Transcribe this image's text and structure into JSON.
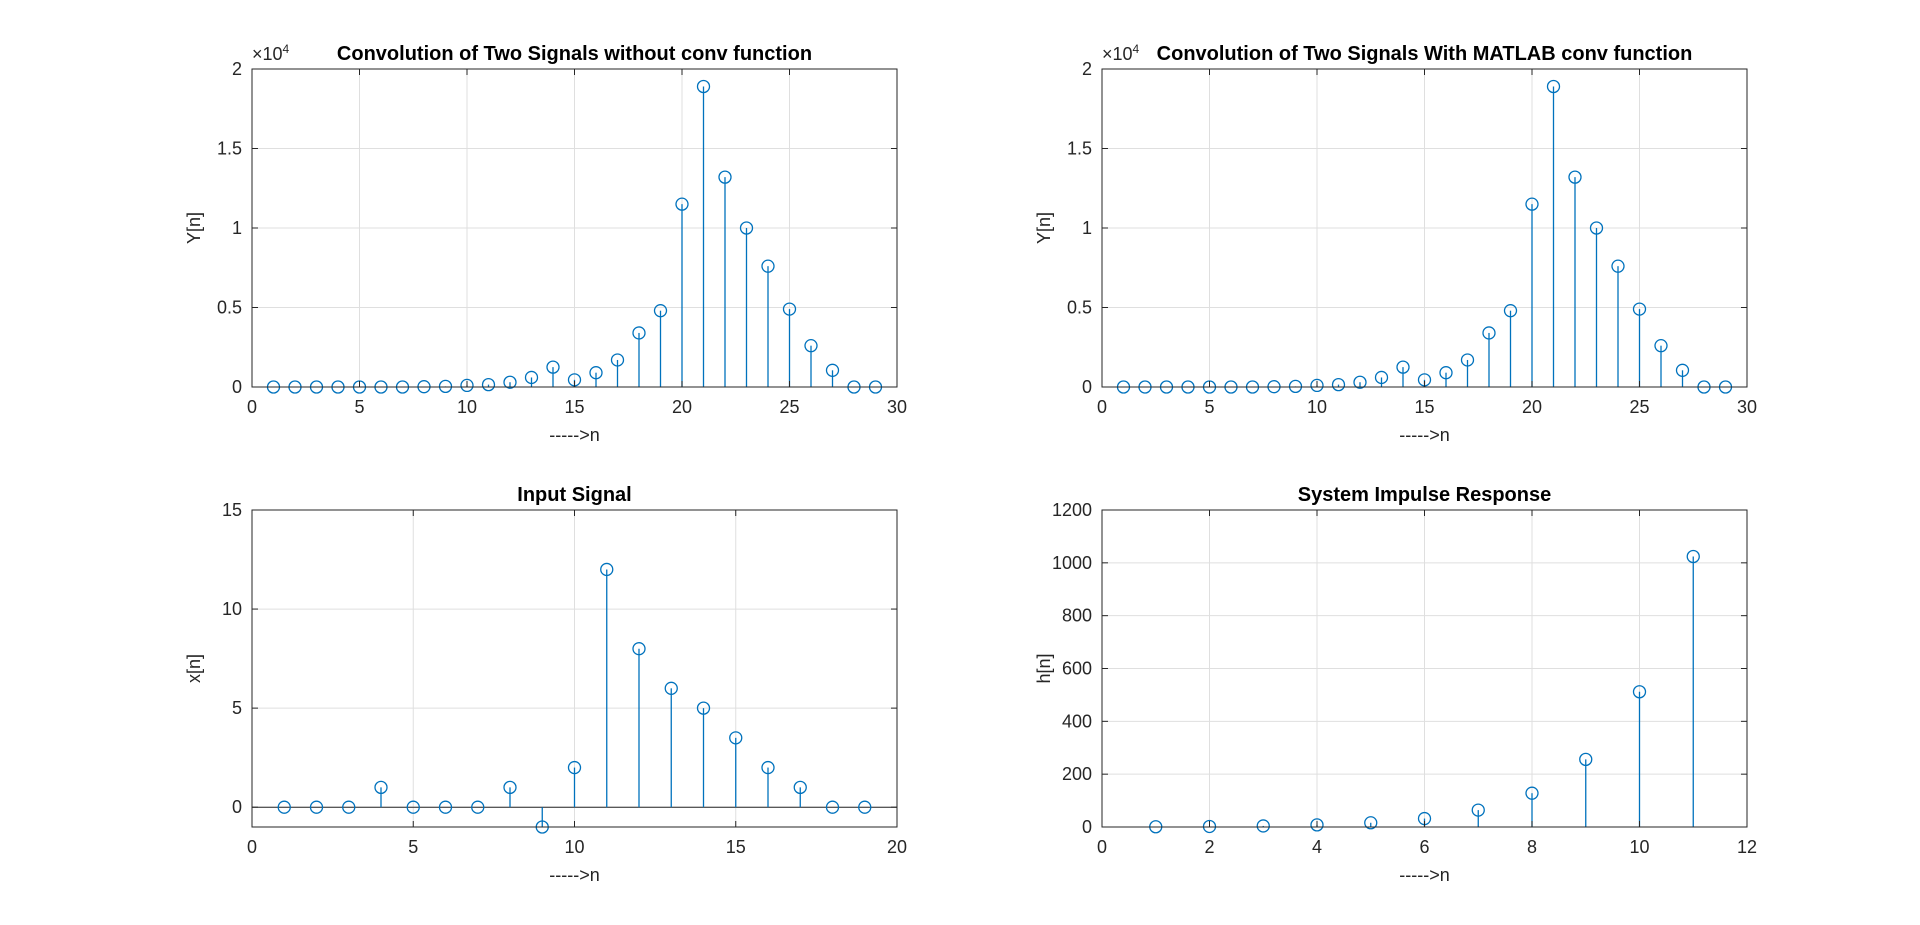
{
  "colors": {
    "stem": "#0072BD",
    "axis": "#262626",
    "grid": "#DFDFDF",
    "background": "#FFFFFF"
  },
  "chart_data": [
    {
      "type": "stem",
      "title": "Convolution of Two Signals without conv function",
      "xlabel": "----->n",
      "ylabel": "Y[n]",
      "xlim": [
        0,
        30
      ],
      "ylim": [
        0,
        20000
      ],
      "xticks": [
        0,
        5,
        10,
        15,
        20,
        25,
        30
      ],
      "yticks": [
        0,
        5000,
        10000,
        15000,
        20000
      ],
      "ytick_labels": [
        "0",
        "0.5",
        "1",
        "1.5",
        "2"
      ],
      "exponent_label": "×10",
      "exponent_power": "4",
      "grid": true,
      "x": [
        1,
        2,
        3,
        4,
        5,
        6,
        7,
        8,
        9,
        10,
        11,
        12,
        13,
        14,
        15,
        16,
        17,
        18,
        19,
        20,
        21,
        22,
        23,
        24,
        25,
        26,
        27,
        28,
        29
      ],
      "y": [
        0,
        0,
        0,
        0,
        0,
        0,
        0,
        20,
        40,
        100,
        150,
        300,
        600,
        1250,
        450,
        900,
        1700,
        3400,
        4800,
        11500,
        18900,
        13200,
        10000,
        7600,
        4900,
        2600,
        1050,
        0,
        0
      ]
    },
    {
      "type": "stem",
      "title": "Convolution of Two Signals With MATLAB conv function",
      "xlabel": "----->n",
      "ylabel": "Y[n]",
      "xlim": [
        0,
        30
      ],
      "ylim": [
        0,
        20000
      ],
      "xticks": [
        0,
        5,
        10,
        15,
        20,
        25,
        30
      ],
      "yticks": [
        0,
        5000,
        10000,
        15000,
        20000
      ],
      "ytick_labels": [
        "0",
        "0.5",
        "1",
        "1.5",
        "2"
      ],
      "exponent_label": "×10",
      "exponent_power": "4",
      "grid": true,
      "x": [
        1,
        2,
        3,
        4,
        5,
        6,
        7,
        8,
        9,
        10,
        11,
        12,
        13,
        14,
        15,
        16,
        17,
        18,
        19,
        20,
        21,
        22,
        23,
        24,
        25,
        26,
        27,
        28,
        29
      ],
      "y": [
        0,
        0,
        0,
        0,
        0,
        0,
        0,
        20,
        40,
        100,
        150,
        300,
        600,
        1250,
        450,
        900,
        1700,
        3400,
        4800,
        11500,
        18900,
        13200,
        10000,
        7600,
        4900,
        2600,
        1050,
        0,
        0
      ]
    },
    {
      "type": "stem",
      "title": "Input Signal",
      "xlabel": "----->n",
      "ylabel": "x[n]",
      "xlim": [
        0,
        20
      ],
      "ylim": [
        -1,
        15
      ],
      "xticks": [
        0,
        5,
        10,
        15,
        20
      ],
      "yticks": [
        0,
        5,
        10,
        15
      ],
      "ytick_labels": [
        "0",
        "5",
        "10",
        "15"
      ],
      "grid": true,
      "baseline": 0,
      "x": [
        1,
        2,
        3,
        4,
        5,
        6,
        7,
        8,
        9,
        10,
        11,
        12,
        13,
        14,
        15,
        16,
        17,
        18,
        19
      ],
      "y": [
        0,
        0,
        0,
        1,
        0,
        0,
        0,
        1,
        -1,
        2,
        12,
        8,
        6,
        5,
        3.5,
        2,
        1,
        0,
        0
      ]
    },
    {
      "type": "stem",
      "title": "System Impulse Response",
      "xlabel": "----->n",
      "ylabel": "h[n]",
      "xlim": [
        0,
        12
      ],
      "ylim": [
        0,
        1200
      ],
      "xticks": [
        0,
        2,
        4,
        6,
        8,
        10,
        12
      ],
      "yticks": [
        0,
        200,
        400,
        600,
        800,
        1000,
        1200
      ],
      "ytick_labels": [
        "0",
        "200",
        "400",
        "600",
        "800",
        "1000",
        "1200"
      ],
      "grid": true,
      "x": [
        1,
        2,
        3,
        4,
        5,
        6,
        7,
        8,
        9,
        10,
        11
      ],
      "y": [
        1,
        2,
        4,
        8,
        16,
        32,
        64,
        128,
        256,
        512,
        1024
      ]
    }
  ]
}
